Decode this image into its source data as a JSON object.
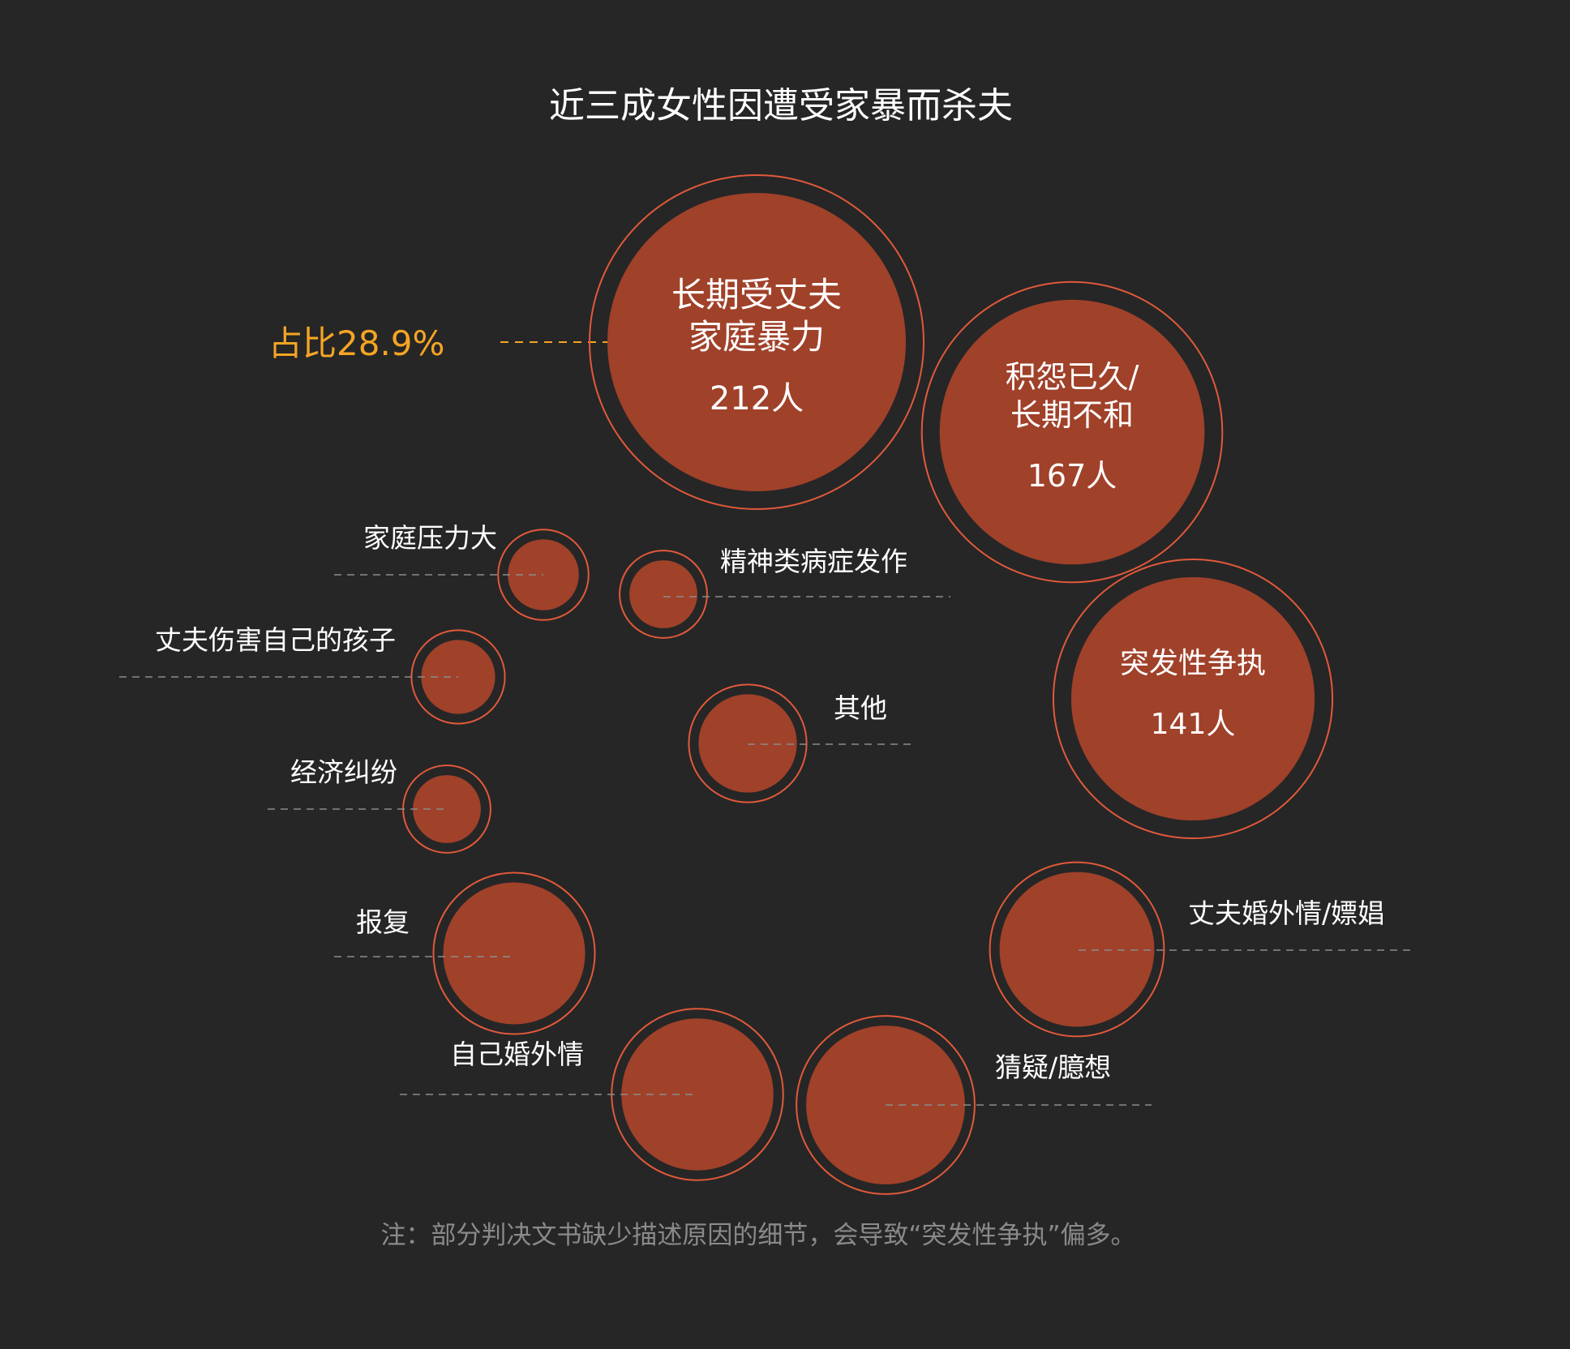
{
  "chart_data": {
    "type": "bubble",
    "title": "近三成女性因遭受家暴而杀夫",
    "unit": "人",
    "highlight": {
      "label": "占比28.9%",
      "color": "#f5a524"
    },
    "colors": {
      "background": "#262626",
      "bubble_fill": "#a0412a",
      "bubble_ring": "#e2593a",
      "text": "#ffffff",
      "note": "#8a8a8a",
      "leader_line": "#8c8c8c"
    },
    "items": [
      {
        "label": "长期受文夫家庭暴力",
        "lines": [
          "长期受丈夫",
          "家庭暴力"
        ],
        "value": 212,
        "value_label": "212人"
      },
      {
        "label": "积怨已久/长期不和",
        "lines": [
          "积怨已久/",
          "长期不和"
        ],
        "value": 167,
        "value_label": "167人"
      },
      {
        "label": "突发性争执",
        "lines": [
          "突发性争执"
        ],
        "value": 141,
        "value_label": "141人"
      },
      {
        "label": "丈夫婚外情/嫖娼",
        "value": 57
      },
      {
        "label": "猜疑/臆想",
        "value": 60
      },
      {
        "label": "自己婚外情",
        "value": 55
      },
      {
        "label": "报复",
        "value": 48
      },
      {
        "label": "其他",
        "value": 23
      },
      {
        "label": "经济纠纷",
        "value": 11
      },
      {
        "label": "丈夫伤害自己的孩子",
        "value": 13
      },
      {
        "label": "家庭压力大",
        "value": 12
      },
      {
        "label": "精神类病症发作",
        "value": 11
      }
    ],
    "note": "注：部分判决文书缺少描述原因的细节，会导致“突发性争执”偏多。"
  }
}
